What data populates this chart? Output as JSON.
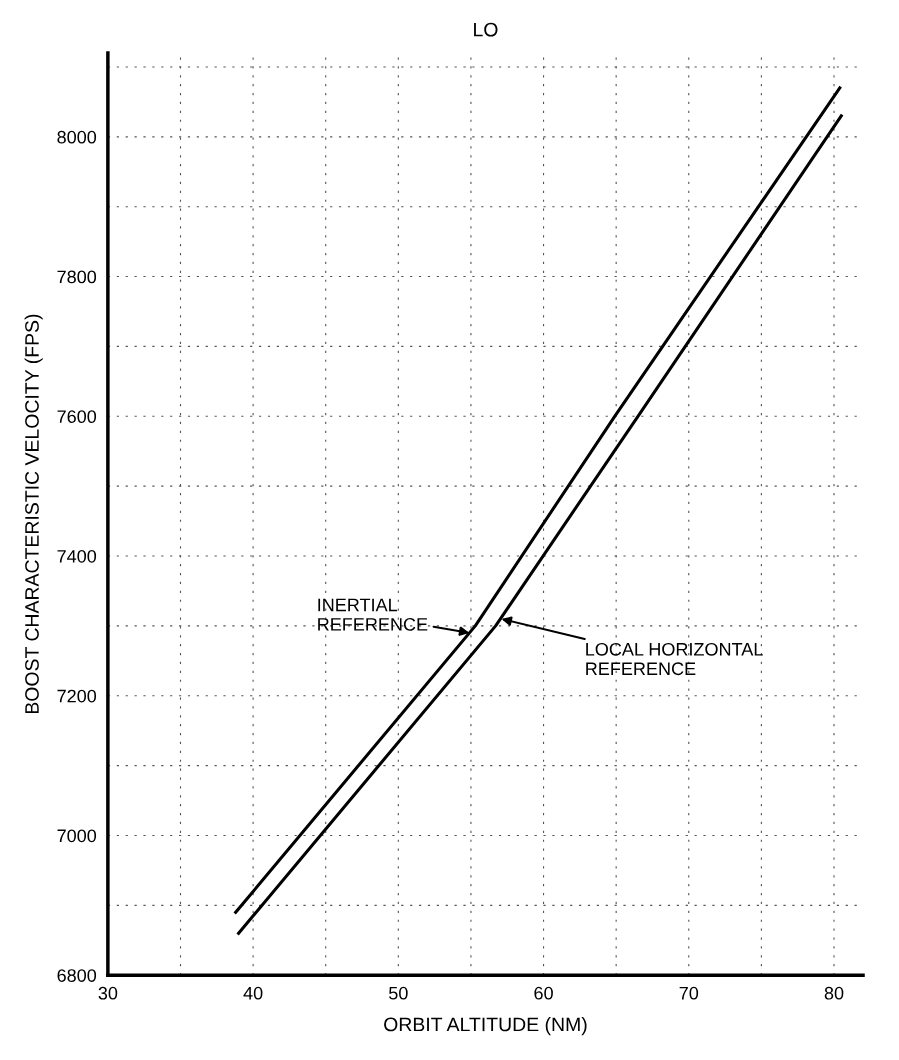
{
  "chart_data": {
    "type": "line",
    "title": "LO",
    "xlabel": "ORBIT ALTITUDE (NM)",
    "ylabel": "BOOST CHARACTERISTIC VELOCITY (FPS)",
    "series": [
      {
        "color": "#000000",
        "x": [
          38.8,
          55.3,
          64.9,
          80.4
        ],
        "values": [
          6890,
          7300,
          7600,
          8070
        ]
      },
      {
        "color": "#000000",
        "x": [
          39.0,
          56.7,
          66.5,
          80.5
        ],
        "values": [
          6860,
          7300,
          7600,
          8030
        ]
      }
    ],
    "annotations": [
      {
        "text": "INERTIAL\nREFERENCE",
        "x": 54.9,
        "y": 7290
      },
      {
        "text": "LOCAL HORIZONTAL\nREFERENCE",
        "x": 57.1,
        "y": 7310
      }
    ],
    "xlim": [
      30,
      82
    ],
    "ylim": [
      6800,
      8120
    ],
    "xticks": [
      30,
      {
        "value": 35,
        "label": null
      },
      40,
      {
        "value": 45,
        "label": null
      },
      50,
      {
        "value": 55,
        "label": null
      },
      60,
      {
        "value": 65,
        "label": null
      },
      70,
      {
        "value": 75,
        "label": null
      },
      80
    ],
    "yticks": [
      6800,
      {
        "value": 6900,
        "label": null
      },
      7000,
      {
        "value": 7100,
        "label": null
      },
      7200,
      {
        "value": 7300,
        "label": null
      },
      7400,
      {
        "value": 7500,
        "label": null
      },
      7600,
      {
        "value": 7700,
        "label": null
      },
      7800,
      {
        "value": 7900,
        "label": null
      },
      8000,
      {
        "value": 8100,
        "label": null
      }
    ],
    "grid": true,
    "marker": "none",
    "line_style": "solid"
  }
}
